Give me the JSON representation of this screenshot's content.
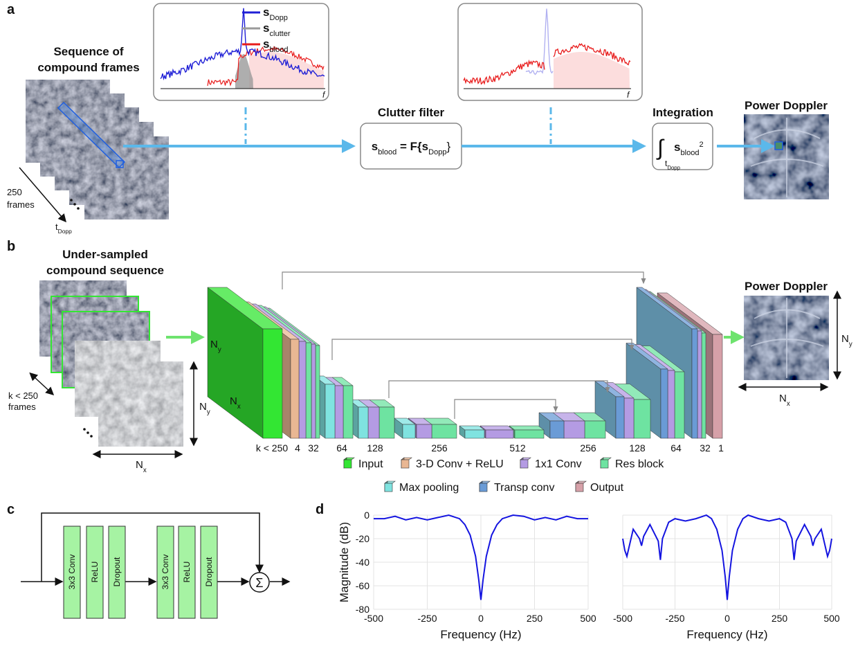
{
  "panel_labels": {
    "a": "a",
    "b": "b",
    "c": "c",
    "d": "d"
  },
  "panel_a": {
    "sequence_title": [
      "Sequence of",
      "compound frames"
    ],
    "frames_count": [
      "250",
      "frames"
    ],
    "time_axis": {
      "main": "t",
      "sub": "Dopp"
    },
    "spectrum_legend": [
      {
        "main": "s",
        "sub": "Dopp",
        "color": "#1f1fd6"
      },
      {
        "main": "s",
        "sub": "clutter",
        "color": "#9a9a9a"
      },
      {
        "main": "s",
        "sub": "blood",
        "color": "#e81c1c"
      }
    ],
    "frequency_symbol": "f",
    "clutter_filter": {
      "title": "Clutter filter",
      "lhs": "s",
      "lhs_sub": "blood",
      "operator": " = F{",
      "arg": "s",
      "arg_sub": "Dopp",
      "close": "}"
    },
    "integration": {
      "title": "Integration",
      "integral": "∫",
      "limit": "t",
      "limit_sub": "Dopp",
      "integrand": "s",
      "integrand_sub": "blood",
      "power": "2"
    },
    "output_title": "Power Doppler"
  },
  "panel_b": {
    "sequence_title": [
      "Under-sampled",
      "compound sequence"
    ],
    "frames_count": [
      "k < 250",
      "frames"
    ],
    "dim_y": {
      "main": "N",
      "sub": "y"
    },
    "dim_x": {
      "main": "N",
      "sub": "x"
    },
    "channel_labels": [
      "k < 250",
      "4",
      "32",
      "64",
      "128",
      "256",
      "512",
      "256",
      "128",
      "64",
      "32",
      "1"
    ],
    "legend": [
      {
        "label": "Input",
        "color": "#33e633"
      },
      {
        "label": "3-D Conv + ReLU",
        "color": "#e9b793"
      },
      {
        "label": "1x1 Conv",
        "color": "#b49be3"
      },
      {
        "label": "Res block",
        "color": "#6ee3a1"
      },
      {
        "label": "Max pooling",
        "color": "#7fe3e0"
      },
      {
        "label": "Transp conv",
        "color": "#6a9bd6"
      },
      {
        "label": "Output",
        "color": "#d6a0a8"
      }
    ],
    "output_title": "Power Doppler"
  },
  "panel_c": {
    "blocks": [
      "3x3 Conv",
      "ReLU",
      "Dropout",
      "3x3 Conv",
      "ReLU",
      "Dropout"
    ],
    "sum_symbol": "Σ"
  },
  "chart_data": [
    {
      "type": "line",
      "ylabel": "Magnitude (dB)",
      "xlabel": "Frequency (Hz)",
      "color": "#1414e0",
      "grid": true,
      "xlim": [
        -500,
        500
      ],
      "ylim": [
        -80,
        0
      ],
      "xticks": [
        -500,
        -250,
        0,
        250,
        500
      ],
      "yticks": [
        -80,
        -60,
        -40,
        -20,
        0
      ],
      "x": [
        -500,
        -450,
        -400,
        -350,
        -300,
        -250,
        -200,
        -150,
        -100,
        -75,
        -50,
        -25,
        -10,
        0,
        10,
        25,
        50,
        75,
        100,
        150,
        200,
        250,
        300,
        350,
        400,
        450,
        500
      ],
      "values": [
        -3,
        -3,
        -1,
        -4,
        -2,
        -4,
        -2,
        0,
        -3,
        -8,
        -17,
        -35,
        -55,
        -72,
        -55,
        -35,
        -17,
        -8,
        -3,
        0,
        -1,
        -4,
        -2,
        -4,
        -1,
        -3,
        -3
      ]
    },
    {
      "type": "line",
      "xlabel": "Frequency (Hz)",
      "color": "#1414e0",
      "grid": true,
      "xlim": [
        -500,
        500
      ],
      "ylim": [
        -80,
        0
      ],
      "xticks": [
        -500,
        -250,
        0,
        250,
        500
      ],
      "yticks": [
        -80,
        -60,
        -40,
        -20,
        0
      ],
      "x": [
        -500,
        -490,
        -480,
        -450,
        -420,
        -410,
        -400,
        -370,
        -330,
        -320,
        -310,
        -280,
        -250,
        -200,
        -150,
        -100,
        -75,
        -50,
        -25,
        -10,
        0,
        10,
        25,
        50,
        75,
        100,
        150,
        200,
        250,
        280,
        310,
        320,
        330,
        370,
        400,
        410,
        420,
        450,
        480,
        490,
        500
      ],
      "values": [
        -20,
        -30,
        -35,
        -12,
        -20,
        -26,
        -18,
        -8,
        -22,
        -38,
        -20,
        -6,
        -3,
        -5,
        -3,
        0,
        -3,
        -12,
        -30,
        -52,
        -72,
        -52,
        -30,
        -12,
        -3,
        0,
        -3,
        -5,
        -3,
        -6,
        -20,
        -38,
        -22,
        -8,
        -18,
        -26,
        -20,
        -12,
        -35,
        -30,
        -20
      ]
    }
  ]
}
